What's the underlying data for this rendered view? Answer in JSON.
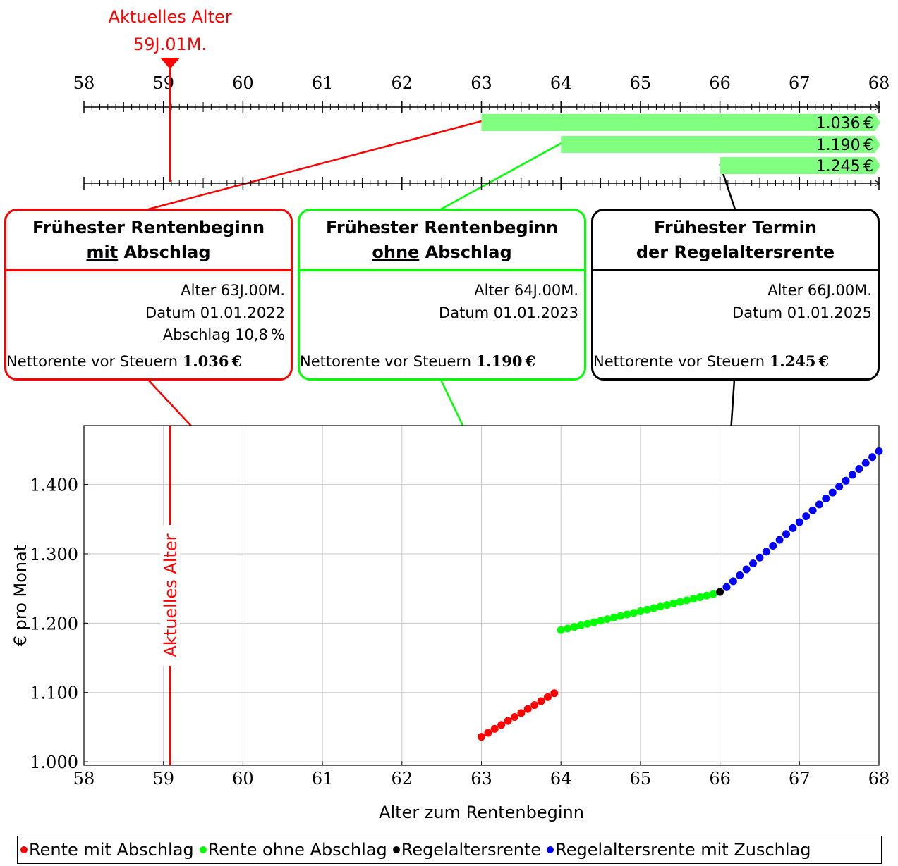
{
  "current_age": {
    "label_line1": "Aktuelles Alter",
    "label_line2": "59J.01M.",
    "value": 59.0833,
    "vertical_label": "Aktuelles Alter",
    "color": "#ff0000"
  },
  "timeline": {
    "ticks": [
      "58",
      "59",
      "60",
      "61",
      "62",
      "63",
      "64",
      "65",
      "66",
      "67",
      "68"
    ],
    "min": 58,
    "max": 68,
    "bars": [
      {
        "start": 63,
        "label": "1.036 €"
      },
      {
        "start": 64,
        "label": "1.190 €"
      },
      {
        "start": 66,
        "label": "1.245 €"
      }
    ],
    "bar_color": "#80ff80"
  },
  "boxes": [
    {
      "title_line1": "Frühester Rentenbeginn",
      "title_line2_emph": "mit",
      "title_line2_rest": " Abschlag",
      "rows": [
        "Alter 63J.00M.",
        "Datum 01.01.2022",
        "Abschlag 10,8 %"
      ],
      "net_label": "Nettorente vor Steuern ",
      "net_value": "1.036 €",
      "color": "#ff0000"
    },
    {
      "title_line1": "Frühester Rentenbeginn",
      "title_line2_emph": "ohne",
      "title_line2_rest": " Abschlag",
      "rows": [
        "Alter 64J.00M.",
        "Datum 01.01.2023"
      ],
      "net_label": "Nettorente vor Steuern ",
      "net_value": "1.190 €",
      "color": "#00ff00"
    },
    {
      "title_line1": "Frühester Termin",
      "title_line2_emph": "",
      "title_line2_rest": "der Regelaltersrente",
      "rows": [
        "Alter 66J.00M.",
        "Datum 01.01.2025"
      ],
      "net_label": "Nettorente vor Steuern ",
      "net_value": "1.245 €",
      "color": "#000000"
    }
  ],
  "chart_data": {
    "type": "scatter",
    "xlabel": "Alter zum Rentenbeginn",
    "ylabel": "€ pro Monat",
    "xlim": [
      58,
      68
    ],
    "ylim": [
      995,
      1485
    ],
    "xticks": [
      "58",
      "59",
      "60",
      "61",
      "62",
      "63",
      "64",
      "65",
      "66",
      "67",
      "68"
    ],
    "yticks": [
      {
        "value": 1000,
        "label": "1.000"
      },
      {
        "value": 1100,
        "label": "1.100"
      },
      {
        "value": 1200,
        "label": "1.200"
      },
      {
        "value": 1300,
        "label": "1.300"
      },
      {
        "value": 1400,
        "label": "1.400"
      }
    ],
    "grid": true,
    "series": [
      {
        "name": "Rente mit Abschlag",
        "color": "#ff0000",
        "x_start": 63,
        "x_end": 63.9167,
        "y_start": 1036,
        "y_end": 1099,
        "count": 12
      },
      {
        "name": "Rente ohne Abschlag",
        "color": "#00ff00",
        "x_start": 64,
        "x_end": 65.9167,
        "y_start": 1190,
        "y_end": 1242,
        "count": 24
      },
      {
        "name": "Regelaltersrente",
        "color": "#000000",
        "x_start": 66,
        "x_end": 66,
        "y_start": 1245,
        "y_end": 1245,
        "count": 1
      },
      {
        "name": "Regelaltersrente mit Zuschlag",
        "color": "#0000ff",
        "x_start": 66.0833,
        "x_end": 68,
        "y_start": 1252,
        "y_end": 1448,
        "count": 24
      }
    ]
  },
  "legend": [
    {
      "label": "Rente mit Abschlag",
      "color": "#ff0000"
    },
    {
      "label": "Rente ohne Abschlag",
      "color": "#00ff00"
    },
    {
      "label": "Regelaltersrente",
      "color": "#000000"
    },
    {
      "label": "Regelaltersrente mit Zuschlag",
      "color": "#0000ff"
    }
  ]
}
